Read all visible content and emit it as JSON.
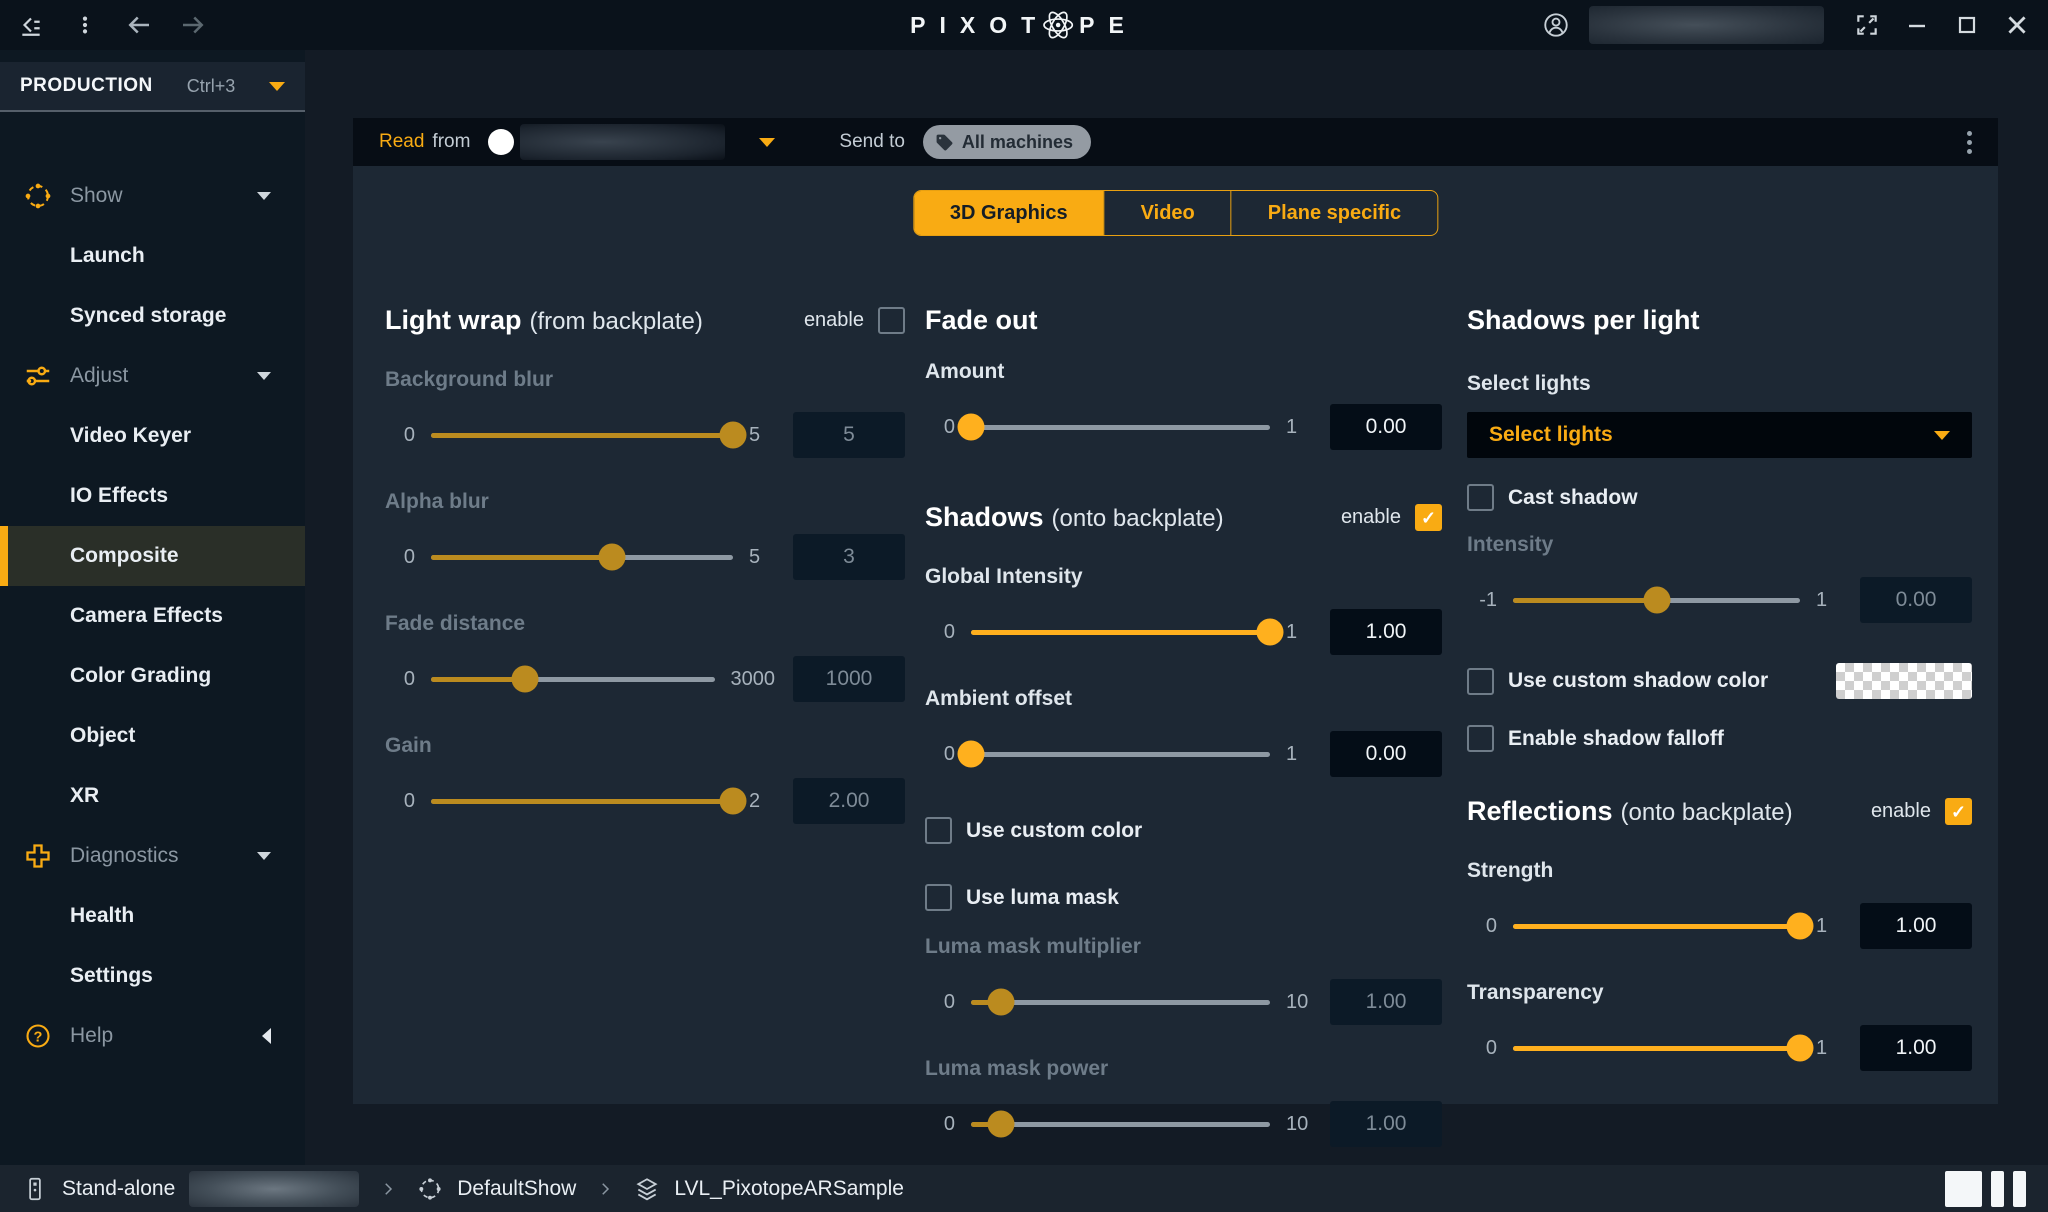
{
  "titlebar": {
    "logo_left": "PIXOT",
    "logo_right": "PE"
  },
  "sidebar": {
    "mode_label": "PRODUCTION",
    "mode_shortcut": "Ctrl+3",
    "items": [
      {
        "label": "Show",
        "type": "section",
        "active": false
      },
      {
        "label": "Launch",
        "type": "item",
        "active": false
      },
      {
        "label": "Synced storage",
        "type": "item",
        "active": false
      },
      {
        "label": "Adjust",
        "type": "section",
        "active": false
      },
      {
        "label": "Video Keyer",
        "type": "item",
        "active": false
      },
      {
        "label": "IO Effects",
        "type": "item",
        "active": false
      },
      {
        "label": "Composite",
        "type": "item",
        "active": true
      },
      {
        "label": "Camera Effects",
        "type": "item",
        "active": false
      },
      {
        "label": "Color Grading",
        "type": "item",
        "active": false
      },
      {
        "label": "Object",
        "type": "item",
        "active": false
      },
      {
        "label": "XR",
        "type": "item",
        "active": false
      },
      {
        "label": "Diagnostics",
        "type": "section",
        "active": false
      },
      {
        "label": "Health",
        "type": "item",
        "active": false
      },
      {
        "label": "Settings",
        "type": "item",
        "active": false
      },
      {
        "label": "Help",
        "type": "section",
        "active": false,
        "collapsed": true
      }
    ]
  },
  "toolbar": {
    "read": "Read",
    "from": "from",
    "send_to": "Send to",
    "machines_tag": "All machines"
  },
  "tabs": [
    {
      "label": "3D Graphics",
      "active": true
    },
    {
      "label": "Video",
      "active": false
    },
    {
      "label": "Plane specific",
      "active": false
    }
  ],
  "sections": {
    "light_wrap": {
      "title": "Light wrap",
      "subtitle": "(from backplate)",
      "enable_label": "enable",
      "enabled": false,
      "sliders": [
        {
          "label": "Background blur",
          "min": "0",
          "max": "5",
          "value": "5",
          "pct": 100
        },
        {
          "label": "Alpha blur",
          "min": "0",
          "max": "5",
          "value": "3",
          "pct": 60
        },
        {
          "label": "Fade distance",
          "min": "0",
          "max": "3000",
          "value": "1000",
          "pct": 33
        },
        {
          "label": "Gain",
          "min": "0",
          "max": "2",
          "value": "2.00",
          "pct": 100
        }
      ]
    },
    "fade_out": {
      "title": "Fade out",
      "sliders": [
        {
          "label": "Amount",
          "min": "0",
          "max": "1",
          "value": "0.00",
          "pct": 0
        }
      ]
    },
    "shadows": {
      "title": "Shadows",
      "subtitle": "(onto backplate)",
      "enable_label": "enable",
      "enabled": true,
      "sliders": [
        {
          "label": "Global Intensity",
          "min": "0",
          "max": "1",
          "value": "1.00",
          "pct": 100
        },
        {
          "label": "Ambient offset",
          "min": "0",
          "max": "1",
          "value": "0.00",
          "pct": 0
        }
      ],
      "checkboxes": [
        {
          "label": "Use custom color",
          "checked": false
        },
        {
          "label": "Use luma mask",
          "checked": false
        }
      ],
      "luma_sliders": [
        {
          "label": "Luma mask multiplier",
          "min": "0",
          "max": "10",
          "value": "1.00",
          "pct": 10
        },
        {
          "label": "Luma mask power",
          "min": "0",
          "max": "10",
          "value": "1.00",
          "pct": 10
        }
      ]
    },
    "shadows_per_light": {
      "title": "Shadows per light",
      "select_lights_label": "Select lights",
      "select_lights_value": "Select lights",
      "cast_shadow_label": "Cast shadow",
      "cast_shadow_checked": false,
      "intensity": {
        "label": "Intensity",
        "min": "-1",
        "max": "1",
        "value": "0.00",
        "pct": 50
      },
      "use_custom_shadow_color_label": "Use custom shadow color",
      "use_custom_shadow_color_checked": false,
      "enable_shadow_falloff_label": "Enable shadow falloff",
      "enable_shadow_falloff_checked": false
    },
    "reflections": {
      "title": "Reflections",
      "subtitle": "(onto backplate)",
      "enable_label": "enable",
      "enabled": true,
      "sliders": [
        {
          "label": "Strength",
          "min": "0",
          "max": "1",
          "value": "1.00",
          "pct": 100
        },
        {
          "label": "Transparency",
          "min": "0",
          "max": "1",
          "value": "1.00",
          "pct": 100
        }
      ]
    }
  },
  "statusbar": {
    "mode": "Stand-alone",
    "show": "DefaultShow",
    "level": "LVL_PixotopeARSample"
  },
  "colors": {
    "accent": "#f9ab13",
    "accent_dim": "#bb8b1f",
    "track": "#8e99a3",
    "panel_bg": "#1d2834",
    "sidebar_bg": "#0d1822"
  }
}
